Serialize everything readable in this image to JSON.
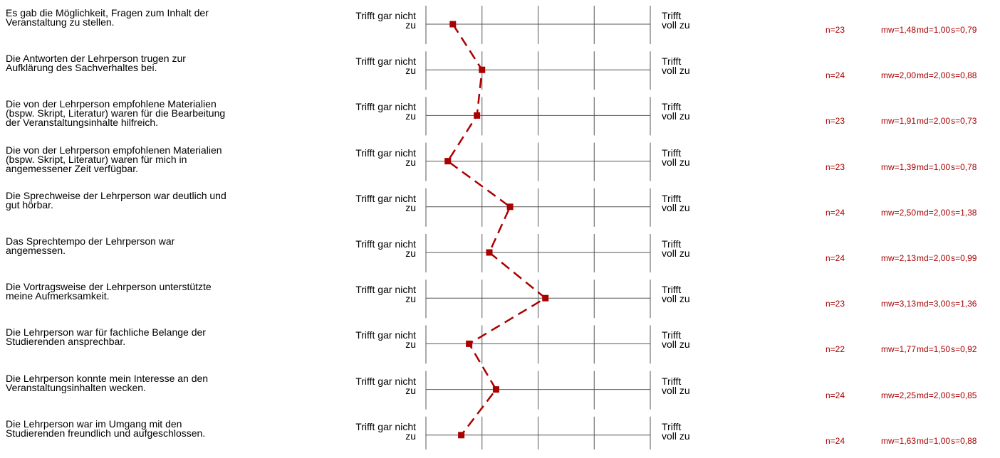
{
  "scale": {
    "left_label_1": "Trifft gar nicht",
    "left_label_2": "zu",
    "right_label_1": "Trifft",
    "right_label_2": "voll zu",
    "min": 1,
    "max": 5
  },
  "chart_data": {
    "type": "line",
    "items": [
      {
        "question": "Es gab die Möglichkeit, Fragen zum Inhalt der\nVeranstaltung zu stellen.",
        "n": "n=23",
        "mw": "mw=1,48",
        "md": "md=1,00",
        "s": "s=0,79",
        "value": 1.48
      },
      {
        "question": "Die Antworten der Lehrperson trugen zur\nAufklärung des Sachverhaltes bei.",
        "n": "n=24",
        "mw": "mw=2,00",
        "md": "md=2,00",
        "s": "s=0,88",
        "value": 2.0
      },
      {
        "question": "Die von der Lehrperson empfohlene Materialien\n(bspw. Skript, Literatur) waren für die Bearbeitung\nder Veranstaltungsinhalte hilfreich.",
        "n": "n=23",
        "mw": "mw=1,91",
        "md": "md=2,00",
        "s": "s=0,73",
        "value": 1.91
      },
      {
        "question": "Die von der Lehrperson empfohlenen Materialien\n(bspw. Skript, Literatur) waren für mich in\nangemessener Zeit verfügbar.",
        "n": "n=23",
        "mw": "mw=1,39",
        "md": "md=1,00",
        "s": "s=0,78",
        "value": 1.39
      },
      {
        "question": "Die Sprechweise der Lehrperson war deutlich und\ngut hörbar.",
        "n": "n=24",
        "mw": "mw=2,50",
        "md": "md=2,00",
        "s": "s=1,38",
        "value": 2.5
      },
      {
        "question": "Das Sprechtempo der Lehrperson war\nangemessen.",
        "n": "n=24",
        "mw": "mw=2,13",
        "md": "md=2,00",
        "s": "s=0,99",
        "value": 2.13
      },
      {
        "question": "Die Vortragsweise der Lehrperson unterstützte\nmeine Aufmerksamkeit.",
        "n": "n=23",
        "mw": "mw=3,13",
        "md": "md=3,00",
        "s": "s=1,36",
        "value": 3.13
      },
      {
        "question": "Die Lehrperson war für fachliche Belange der\nStudierenden ansprechbar.",
        "n": "n=22",
        "mw": "mw=1,77",
        "md": "md=1,50",
        "s": "s=0,92",
        "value": 1.77
      },
      {
        "question": "Die Lehrperson konnte mein Interesse an den\nVeranstaltungsinhalten wecken.",
        "n": "n=24",
        "mw": "mw=2,25",
        "md": "md=2,00",
        "s": "s=0,85",
        "value": 2.25
      },
      {
        "question": "Die Lehrperson war im Umgang mit den\nStudierenden freundlich und aufgeschlossen.",
        "n": "n=24",
        "mw": "mw=1,63",
        "md": "md=1,00",
        "s": "s=0,88",
        "value": 1.63
      }
    ]
  },
  "colors": {
    "profile_line": "#aa0000",
    "axis": "#555555"
  }
}
